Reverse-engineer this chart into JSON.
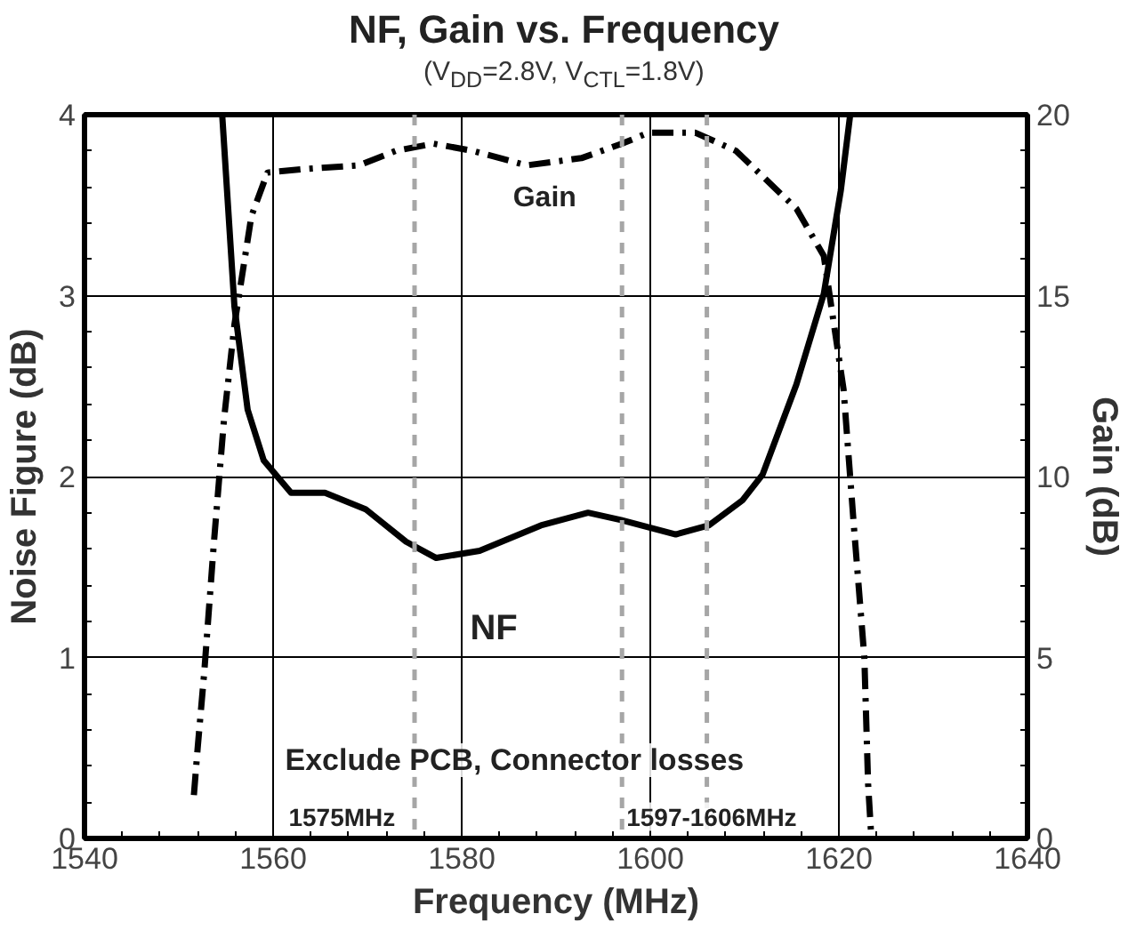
{
  "chart_data": {
    "type": "line",
    "title": "NF, Gain vs. Frequency",
    "subtitle": "(V$_{DD}$=2.8V, V$_{CTL}$=1.8V)",
    "xlabel": "Frequency (MHz)",
    "ylabel": "Noise Figure (dB)",
    "y2label": "Gain (dB)",
    "xlim": [
      1540,
      1640
    ],
    "xticks": [
      1540,
      1560,
      1580,
      1600,
      1620,
      1640
    ],
    "ylim": [
      0,
      4
    ],
    "yticks": [
      0,
      1,
      2,
      3,
      4
    ],
    "y2lim": [
      0,
      20
    ],
    "y2ticks": [
      0,
      5,
      10,
      15,
      20
    ],
    "grid": true,
    "marker": "none",
    "series": [
      {
        "color": "#000000",
        "line_style": "solid",
        "x": [
          1554.6,
          1555.9,
          1557.3,
          1559.0,
          1561.9,
          1565.5,
          1569.8,
          1574.1,
          1577.3,
          1581.9,
          1588.4,
          1593.4,
          1596.9,
          1602.7,
          1606.2,
          1609.8,
          1611.9,
          1615.5,
          1618.4,
          1620.2,
          1621.2
        ],
        "values": [
          4.0,
          2.94,
          2.37,
          2.09,
          1.91,
          1.91,
          1.82,
          1.64,
          1.55,
          1.59,
          1.73,
          1.8,
          1.76,
          1.68,
          1.73,
          1.87,
          2.01,
          2.51,
          3.01,
          3.58,
          4.0
        ]
      },
      {
        "color": "#000000",
        "line_style": "dashdot",
        "axis": "y2",
        "x": [
          1551.6,
          1552.0,
          1552.7,
          1553.7,
          1554.8,
          1555.9,
          1557.7,
          1559.4,
          1563.4,
          1569.1,
          1573.0,
          1577.0,
          1581.2,
          1586.9,
          1592.7,
          1597.0,
          1599.8,
          1604.8,
          1609.1,
          1611.9,
          1615.5,
          1618.4,
          1620.5,
          1621.6,
          1622.7,
          1623.1,
          1623.4
        ],
        "values": [
          1.2,
          2.5,
          4.6,
          8.1,
          11.6,
          14.2,
          17.2,
          18.4,
          18.5,
          18.6,
          19.0,
          19.2,
          19.0,
          18.6,
          18.8,
          19.2,
          19.5,
          19.5,
          19.0,
          18.3,
          17.4,
          16.1,
          12.4,
          8.6,
          5.0,
          1.5,
          0.2
        ]
      }
    ],
    "ref_lines": [
      {
        "axis": "x",
        "value": 1575,
        "label": null,
        "color": "#a6a6a6",
        "line_style": "dashed"
      },
      {
        "axis": "x",
        "value": 1597,
        "label": null,
        "color": "#a6a6a6",
        "line_style": "dashed"
      },
      {
        "axis": "x",
        "value": 1606,
        "label": null,
        "color": "#a6a6a6",
        "line_style": "dashed"
      }
    ],
    "annotations": [
      "Gain",
      "NF",
      "Exclude PCB, Connector losses",
      "1575MHz",
      "1597-1606MHz"
    ]
  }
}
